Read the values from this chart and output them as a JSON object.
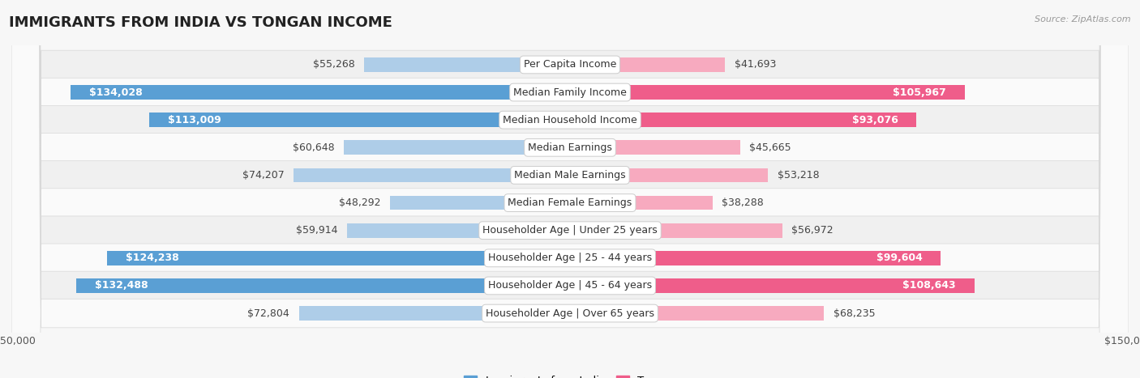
{
  "title": "IMMIGRANTS FROM INDIA VS TONGAN INCOME",
  "source": "Source: ZipAtlas.com",
  "categories": [
    "Per Capita Income",
    "Median Family Income",
    "Median Household Income",
    "Median Earnings",
    "Median Male Earnings",
    "Median Female Earnings",
    "Householder Age | Under 25 years",
    "Householder Age | 25 - 44 years",
    "Householder Age | 45 - 64 years",
    "Householder Age | Over 65 years"
  ],
  "india_values": [
    55268,
    134028,
    113009,
    60648,
    74207,
    48292,
    59914,
    124238,
    132488,
    72804
  ],
  "tongan_values": [
    41693,
    105967,
    93076,
    45665,
    53218,
    38288,
    56972,
    99604,
    108643,
    68235
  ],
  "india_labels": [
    "$55,268",
    "$134,028",
    "$113,009",
    "$60,648",
    "$74,207",
    "$48,292",
    "$59,914",
    "$124,238",
    "$132,488",
    "$72,804"
  ],
  "tongan_labels": [
    "$41,693",
    "$105,967",
    "$93,076",
    "$45,665",
    "$53,218",
    "$38,288",
    "$56,972",
    "$99,604",
    "$108,643",
    "$68,235"
  ],
  "india_color_light": "#AECDE8",
  "india_color_dark": "#5A9FD4",
  "tongan_color_light": "#F7AABF",
  "tongan_color_dark": "#EF5D8A",
  "india_threshold": 90000,
  "tongan_threshold": 80000,
  "max_value": 150000,
  "background_color": "#f7f7f7",
  "row_colors": [
    "#f0f0f0",
    "#fafafa"
  ],
  "bar_height": 0.52,
  "label_fontsize": 9.0,
  "title_fontsize": 13,
  "category_fontsize": 9.0,
  "legend_fontsize": 9.5
}
